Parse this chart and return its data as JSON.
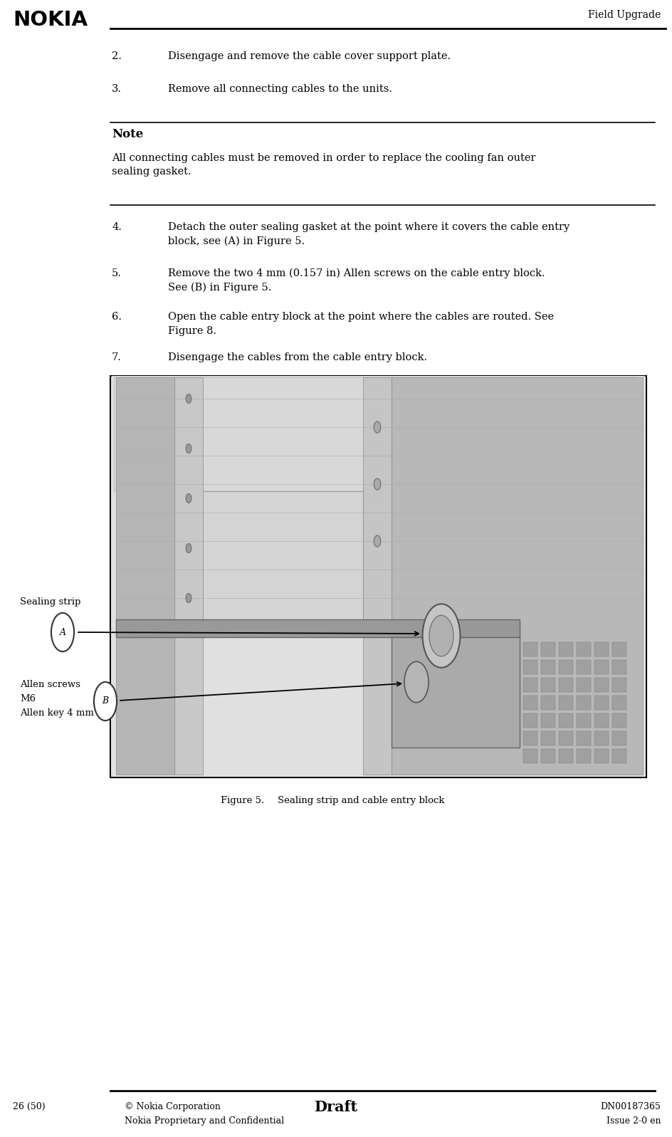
{
  "page_width": 9.45,
  "page_height": 15.97,
  "bg_color": "#ffffff",
  "header_logo": "NOKIA",
  "header_right": "Field Upgrade",
  "footer_left": "26 (50)",
  "footer_center_bold": "Draft",
  "footer_copyright": "© Nokia Corporation",
  "footer_confidential": "Nokia Proprietary and Confidential",
  "footer_right1": "DN00187365",
  "footer_right2": "Issue 2-0 en",
  "step2_num": "2.",
  "step2_text": "Disengage and remove the cable cover support plate.",
  "step3_num": "3.",
  "step3_text": "Remove all connecting cables to the units.",
  "note_title": "Note",
  "note_text": "All connecting cables must be removed in order to replace the cooling fan outer\nsealing gasket.",
  "step4_num": "4.",
  "step4_text": "Detach the outer sealing gasket at the point where it covers the cable entry\nblock, see (A) in Figure 5.",
  "step5_num": "5.",
  "step5_text": "Remove the two 4 mm (0.157 in) Allen screws on the cable entry block.\nSee (B) in Figure 5.",
  "step6_num": "6.",
  "step6_text": "Open the cable entry block at the point where the cables are routed. See\nFigure 8.",
  "step7_num": "7.",
  "step7_text": "Disengage the cables from the cable entry block.",
  "figure_caption_num": "Figure 5.",
  "figure_caption_text": "Sealing strip and cable entry block",
  "label_A": "A",
  "label_B": "B",
  "label_sealing": "Sealing strip",
  "label_allen_line1": "Allen screws",
  "label_allen_line2": "M6",
  "label_allen_line3": "Allen key 4 mm",
  "text_color": "#000000",
  "line_color": "#000000",
  "figure_border_color": "#000000",
  "note_line_color": "#000000"
}
